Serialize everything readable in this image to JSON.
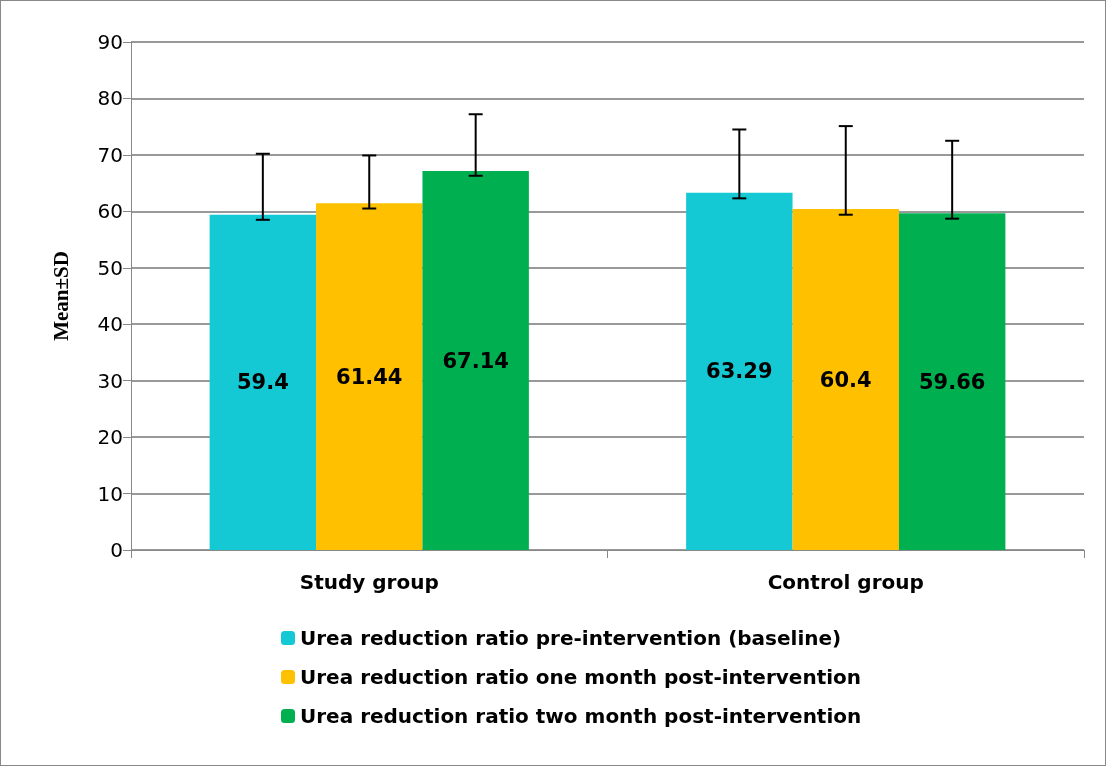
{
  "chart_data": {
    "type": "bar",
    "ylabel": "Mean±SD",
    "categories": [
      "Study group",
      "Control group"
    ],
    "series": [
      {
        "name": "Urea reduction ratio pre-intervention (baseline)",
        "color": "#14c8d4",
        "values": [
          59.4,
          63.29
        ],
        "errors": [
          [
            58.5,
            70.2
          ],
          [
            62.3,
            74.5
          ]
        ]
      },
      {
        "name": "Urea reduction ratio one month post-intervention",
        "color": "#ffc000",
        "values": [
          61.44,
          60.4
        ],
        "errors": [
          [
            60.5,
            69.9
          ],
          [
            59.4,
            75.1
          ]
        ]
      },
      {
        "name": "Urea reduction ratio two month post-intervention",
        "color": "#00b050",
        "values": [
          67.14,
          59.66
        ],
        "errors": [
          [
            66.3,
            77.2
          ],
          [
            58.7,
            72.5
          ]
        ]
      }
    ],
    "ylim": [
      0,
      90
    ],
    "yticks": [
      0,
      10,
      20,
      30,
      40,
      50,
      60,
      70,
      80,
      90
    ],
    "grid": "y",
    "legend": "bottom",
    "data_labels": true
  }
}
